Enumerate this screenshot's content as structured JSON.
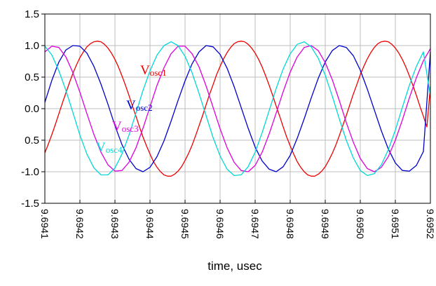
{
  "chart_data": {
    "type": "line",
    "title": "",
    "xlabel": "time, usec",
    "ylabel": "",
    "xlim": [
      9.6941,
      9.6952
    ],
    "ylim": [
      -1.5,
      1.5
    ],
    "x_tick_labels": [
      "9.6941",
      "9.6942",
      "9.6943",
      "9.6944",
      "9.6945",
      "9.6946",
      "9.6947",
      "9.6948",
      "9.6949",
      "9.6950",
      "9.6951",
      "9.6952"
    ],
    "y_tick_labels": [
      "1.5",
      "1.0",
      "0.5",
      "0.0",
      "0.5",
      "-1.0",
      "-1.5"
    ],
    "grid": true,
    "series": [
      {
        "name_main": "V",
        "name_sub": "osc1",
        "color": "#ee0000",
        "x": [
          9.6941,
          9.69411,
          9.69412,
          9.69413,
          9.69414,
          9.69415,
          9.69416,
          9.69417,
          9.69418,
          9.69419,
          9.6942,
          9.69421,
          9.69422,
          9.69423,
          9.69424,
          9.69425,
          9.69426,
          9.69427,
          9.69428,
          9.69429,
          9.6943,
          9.69431,
          9.69432,
          9.69433,
          9.69434,
          9.69435,
          9.69436,
          9.69437,
          9.69438,
          9.69439,
          9.6944,
          9.69441,
          9.69442,
          9.69443,
          9.69444,
          9.69445,
          9.69446,
          9.69447,
          9.69448,
          9.69449,
          9.6945,
          9.69451,
          9.69452,
          9.69453,
          9.69454,
          9.69455,
          9.69456,
          9.69457,
          9.69458,
          9.69459,
          9.6946,
          9.69461,
          9.69462,
          9.69463,
          9.69464,
          9.69465,
          9.69466,
          9.69467,
          9.69468,
          9.69469,
          9.6947,
          9.69471,
          9.69472,
          9.69473,
          9.69474,
          9.69475,
          9.69476,
          9.69477,
          9.69478,
          9.69479,
          9.6948,
          9.69481,
          9.69482,
          9.69483,
          9.69484,
          9.69485,
          9.69486,
          9.69487,
          9.69488,
          9.69489,
          9.6949,
          9.69491,
          9.69492,
          9.69493,
          9.69494,
          9.69495,
          9.69496,
          9.69497,
          9.69498,
          9.69499,
          9.695,
          9.69501,
          9.69502,
          9.69503,
          9.69504,
          9.69505,
          9.69506,
          9.69507,
          9.69508,
          9.69509,
          9.6951,
          9.69511,
          9.69512,
          9.69513,
          9.69514,
          9.69515,
          9.69516,
          9.69517,
          9.69518,
          9.69519,
          9.6952
        ],
        "values": [
          -0.7,
          -0.56,
          -0.41,
          -0.25,
          -0.08,
          0.09,
          0.25,
          0.41,
          0.56,
          0.69,
          0.81,
          0.9,
          0.98,
          1.03,
          1.06,
          1.07,
          1.06,
          1.02,
          0.96,
          0.88,
          0.78,
          0.66,
          0.52,
          0.37,
          0.21,
          0.04,
          -0.12,
          -0.29,
          -0.45,
          -0.59,
          -0.72,
          -0.84,
          -0.93,
          -1.0,
          -1.05,
          -1.07,
          -1.07,
          -1.04,
          -0.99,
          -0.92,
          -0.82,
          -0.71,
          -0.58,
          -0.43,
          -0.27,
          -0.11,
          0.06,
          0.23,
          0.38,
          0.54,
          0.67,
          0.79,
          0.89,
          0.97,
          1.03,
          1.06,
          1.07,
          1.06,
          1.02,
          0.96,
          0.88,
          0.78,
          0.66,
          0.52,
          0.37,
          0.21,
          0.04,
          -0.12,
          -0.29,
          -0.45,
          -0.59,
          -0.72,
          -0.84,
          -0.93,
          -1.0,
          -1.05,
          -1.07,
          -1.07,
          -1.04,
          -0.99,
          -0.92,
          -0.82,
          -0.71,
          -0.58,
          -0.43,
          -0.27,
          -0.11,
          0.06,
          0.23,
          0.38,
          0.54,
          0.67,
          0.79,
          0.89,
          0.97,
          1.03,
          1.06,
          1.07,
          1.06,
          1.02,
          0.96,
          0.88,
          0.78,
          0.66,
          0.52,
          0.37,
          0.21,
          0.04,
          -0.12,
          -0.29,
          0.35
        ]
      },
      {
        "name_main": "V",
        "name_sub": "osc2",
        "color": "#0000cc",
        "x": [
          9.6941,
          9.69412,
          9.69414,
          9.69416,
          9.69418,
          9.6942,
          9.69422,
          9.69424,
          9.69426,
          9.69428,
          9.6943,
          9.69432,
          9.69434,
          9.69436,
          9.69438,
          9.6944,
          9.69442,
          9.69444,
          9.69446,
          9.69448,
          9.6945,
          9.69452,
          9.69454,
          9.69456,
          9.69458,
          9.6946,
          9.69462,
          9.69464,
          9.69466,
          9.69468,
          9.6947,
          9.69472,
          9.69474,
          9.69476,
          9.69478,
          9.6948,
          9.69482,
          9.69484,
          9.69486,
          9.69488,
          9.6949,
          9.69492,
          9.69494,
          9.69496,
          9.69498,
          9.695,
          9.69502,
          9.69504,
          9.69506,
          9.69508,
          9.6951,
          9.69512,
          9.69514,
          9.69516,
          9.69518,
          9.6952
        ],
        "values": [
          0.1,
          0.45,
          0.74,
          0.93,
          1.0,
          0.99,
          0.88,
          0.67,
          0.39,
          0.07,
          -0.27,
          -0.57,
          -0.8,
          -0.95,
          -1.0,
          -0.93,
          -0.76,
          -0.51,
          -0.2,
          0.13,
          0.44,
          0.71,
          0.9,
          1.0,
          0.98,
          0.86,
          0.64,
          0.35,
          0.02,
          -0.31,
          -0.61,
          -0.83,
          -0.96,
          -1.0,
          -0.92,
          -0.74,
          -0.47,
          -0.16,
          0.17,
          0.48,
          0.74,
          0.92,
          1.0,
          0.97,
          0.84,
          0.61,
          0.31,
          -0.02,
          -0.35,
          -0.64,
          -0.86,
          -0.98,
          -0.99,
          -0.9,
          -0.68,
          0.9
        ]
      },
      {
        "name_main": "V",
        "name_sub": "osc3",
        "color": "#dd00dd",
        "x": [
          9.6941,
          9.69412,
          9.69414,
          9.69416,
          9.69418,
          9.6942,
          9.69422,
          9.69424,
          9.69426,
          9.69428,
          9.6943,
          9.69432,
          9.69434,
          9.69436,
          9.69438,
          9.6944,
          9.69442,
          9.69444,
          9.69446,
          9.69448,
          9.6945,
          9.69452,
          9.69454,
          9.69456,
          9.69458,
          9.6946,
          9.69462,
          9.69464,
          9.69466,
          9.69468,
          9.6947,
          9.69472,
          9.69474,
          9.69476,
          9.69478,
          9.6948,
          9.69482,
          9.69484,
          9.69486,
          9.69488,
          9.6949,
          9.69492,
          9.69494,
          9.69496,
          9.69498,
          9.695,
          9.69502,
          9.69504,
          9.69506,
          9.69508,
          9.6951,
          9.69512,
          9.69514,
          9.69516,
          9.69518,
          9.6952
        ],
        "values": [
          0.9,
          0.99,
          0.97,
          0.82,
          0.57,
          0.26,
          -0.08,
          -0.41,
          -0.69,
          -0.89,
          -0.99,
          -0.98,
          -0.85,
          -0.62,
          -0.31,
          0.03,
          0.37,
          0.65,
          0.87,
          0.99,
          0.99,
          0.87,
          0.66,
          0.36,
          0.02,
          -0.32,
          -0.62,
          -0.85,
          -0.98,
          -1.0,
          -0.9,
          -0.69,
          -0.4,
          -0.07,
          0.27,
          0.58,
          0.82,
          0.97,
          1.0,
          0.92,
          0.73,
          0.46,
          0.13,
          -0.22,
          -0.53,
          -0.79,
          -0.95,
          -1.0,
          -0.93,
          -0.76,
          -0.5,
          -0.18,
          0.17,
          0.49,
          0.76,
          0.95
        ]
      },
      {
        "name_main": "V",
        "name_sub": "osc4",
        "color": "#00d8d8",
        "x": [
          9.6941,
          9.69412,
          9.69414,
          9.69416,
          9.69418,
          9.6942,
          9.69422,
          9.69424,
          9.69426,
          9.69428,
          9.6943,
          9.69432,
          9.69434,
          9.69436,
          9.69438,
          9.6944,
          9.69442,
          9.69444,
          9.69446,
          9.69448,
          9.6945,
          9.69452,
          9.69454,
          9.69456,
          9.69458,
          9.6946,
          9.69462,
          9.69464,
          9.69466,
          9.69468,
          9.6947,
          9.69472,
          9.69474,
          9.69476,
          9.69478,
          9.6948,
          9.69482,
          9.69484,
          9.69486,
          9.69488,
          9.6949,
          9.69492,
          9.69494,
          9.69496,
          9.69498,
          9.695,
          9.69502,
          9.69504,
          9.69506,
          9.69508,
          9.6951,
          9.69512,
          9.69514,
          9.69516,
          9.69518,
          9.6952
        ],
        "values": [
          0.99,
          0.85,
          0.6,
          0.29,
          -0.06,
          -0.42,
          -0.72,
          -0.94,
          -1.05,
          -1.05,
          -0.94,
          -0.72,
          -0.42,
          -0.07,
          0.29,
          0.6,
          0.85,
          1.0,
          1.06,
          1.0,
          0.83,
          0.57,
          0.24,
          -0.11,
          -0.46,
          -0.75,
          -0.96,
          -1.06,
          -1.05,
          -0.92,
          -0.69,
          -0.38,
          -0.03,
          0.32,
          0.63,
          0.87,
          1.02,
          1.06,
          0.98,
          0.8,
          0.53,
          0.2,
          -0.16,
          -0.5,
          -0.78,
          -0.98,
          -1.06,
          -1.03,
          -0.89,
          -0.65,
          -0.34,
          0.02,
          0.37,
          0.67,
          0.9,
          0.2
        ]
      }
    ]
  }
}
